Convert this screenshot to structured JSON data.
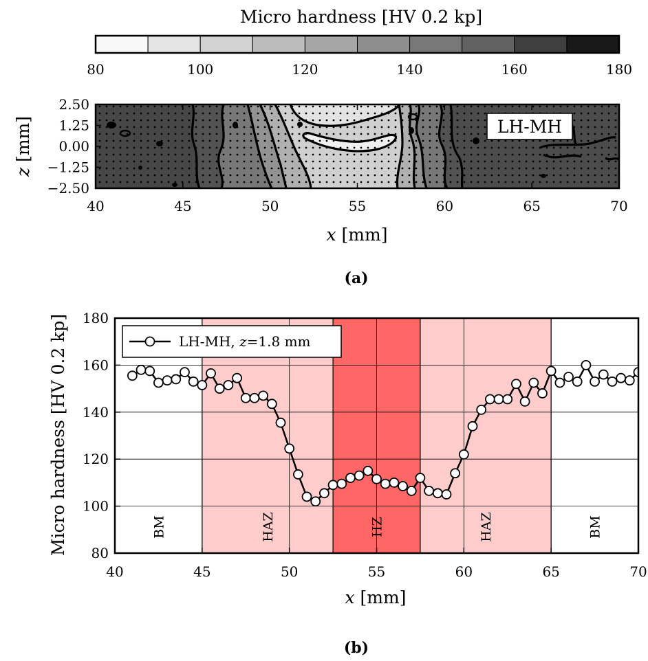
{
  "panel_a": {
    "colorbar": {
      "label": "Micro hardness [HV 0.2 kp]",
      "range": [
        80,
        180
      ],
      "steps": 10,
      "ticks": [
        "80",
        "100",
        "120",
        "140",
        "160",
        "180"
      ]
    },
    "annotation": "LH-MH",
    "xlabel_var": "x",
    "xlabel_unit": " [mm]",
    "ylabel_var": "z",
    "ylabel_unit": " [mm]",
    "xticks": [
      "40",
      "45",
      "50",
      "55",
      "60",
      "65",
      "70"
    ],
    "yticks": [
      "2.50",
      "1.25",
      "0.00",
      "−1.25",
      "−2.50"
    ],
    "caption": "(a)"
  },
  "panel_b": {
    "caption": "(b)",
    "ylabel": "Micro hardness [HV 0.2 kp]",
    "xlabel_var": "x",
    "xlabel_unit": " [mm]",
    "xticks": [
      "40",
      "45",
      "50",
      "55",
      "60",
      "65",
      "70"
    ],
    "yticks": [
      "80",
      "100",
      "120",
      "140",
      "160",
      "180"
    ],
    "legend": {
      "prefix": "LH-MH, ",
      "var": "z",
      "suffix": "=1.8 mm"
    },
    "zones": [
      {
        "label": "BM",
        "from": 40,
        "to": 45,
        "color": "#ffffff"
      },
      {
        "label": "HAZ",
        "from": 45,
        "to": 52.5,
        "color": "#ffcccc"
      },
      {
        "label": "HZ",
        "from": 52.5,
        "to": 57.5,
        "color": "#ff6666"
      },
      {
        "label": "HAZ",
        "from": 57.5,
        "to": 65,
        "color": "#ffcccc"
      },
      {
        "label": "BM",
        "from": 65,
        "to": 70,
        "color": "#ffffff"
      }
    ]
  },
  "chart_data": [
    {
      "type": "heatmap",
      "title": "",
      "xlabel": "x [mm]",
      "ylabel": "z [mm]",
      "colorbar_label": "Micro hardness [HV 0.2 kp]",
      "colorbar_range": [
        80,
        180
      ],
      "xlim": [
        40,
        70
      ],
      "ylim": [
        -2.5,
        2.5
      ],
      "annotation": "LH-MH",
      "colors": [
        "#f8f8f8",
        "#e4e4e4",
        "#d2d2d2",
        "#bcbcbc",
        "#a6a6a6",
        "#8e8e8e",
        "#787878",
        "#626262",
        "#3f3f3f",
        "#181818"
      ]
    },
    {
      "type": "line",
      "xlabel": "x [mm]",
      "ylabel": "Micro hardness [HV 0.2 kp]",
      "xlim": [
        40,
        70
      ],
      "ylim": [
        80,
        180
      ],
      "grid": true,
      "legend_position": "top-left",
      "series": [
        {
          "name": "LH-MH, z=1.8 mm",
          "x": [
            41,
            41.5,
            42,
            42.5,
            43,
            43.5,
            44,
            44.5,
            45,
            45.5,
            46,
            46.5,
            47,
            47.5,
            48,
            48.5,
            49,
            49.5,
            50,
            50.5,
            51,
            51.5,
            52,
            52.5,
            53,
            53.5,
            54,
            54.5,
            55,
            55.5,
            56,
            56.5,
            57,
            57.5,
            58,
            58.5,
            59,
            59.5,
            60,
            60.5,
            61,
            61.5,
            62,
            62.5,
            63,
            63.5,
            64,
            64.5,
            65,
            65.5,
            66,
            66.5,
            67,
            67.5,
            68,
            68.5,
            69,
            69.5,
            70
          ],
          "values": [
            155.5,
            158,
            157.5,
            152.5,
            153.5,
            154,
            157,
            153,
            151.5,
            156.5,
            150,
            151.5,
            154.5,
            146,
            146,
            147,
            143.5,
            135.5,
            124.5,
            113.5,
            104,
            102,
            105.5,
            109,
            109.5,
            112,
            113,
            115,
            111.5,
            109.5,
            110,
            108.5,
            106.5,
            112,
            106.5,
            105.5,
            105,
            114,
            122,
            134,
            141,
            145.5,
            145.5,
            145.5,
            152,
            144.5,
            152.5,
            148,
            157.5,
            152.5,
            155,
            153,
            160,
            153,
            156,
            153,
            154.5,
            153.5,
            157
          ]
        }
      ],
      "zones": [
        "BM",
        "HAZ",
        "HZ",
        "HAZ",
        "BM"
      ]
    }
  ]
}
